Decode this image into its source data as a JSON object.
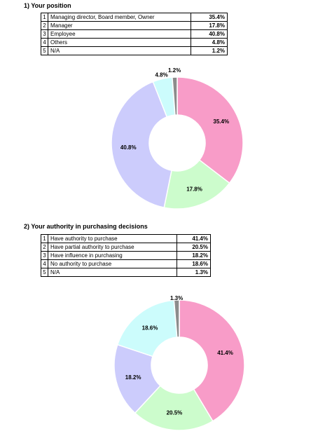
{
  "chart_data": [
    {
      "type": "pie",
      "title": "1) Your position",
      "categories": [
        "Managing director, Board member, Owner",
        "Manager",
        "Employee",
        "Others",
        "N/A"
      ],
      "values": [
        35.4,
        17.8,
        40.8,
        4.8,
        1.2
      ],
      "labels": [
        "35.4%",
        "17.8%",
        "40.8%",
        "4.8%",
        "1.2%"
      ],
      "colors": [
        "#f89cc8",
        "#ccfccc",
        "#ccccfc",
        "#ccfcfc",
        "#8c8c8c"
      ],
      "table": {
        "rows": [
          {
            "num": "1",
            "label": "Managing director, Board member, Owner",
            "pct": "35.4%"
          },
          {
            "num": "2",
            "label": "Manager",
            "pct": "17.8%"
          },
          {
            "num": "3",
            "label": "Employee",
            "pct": "40.8%"
          },
          {
            "num": "4",
            "label": "Others",
            "pct": "4.8%"
          },
          {
            "num": "5",
            "label": "N/A",
            "pct": "1.2%"
          }
        ]
      }
    },
    {
      "type": "pie",
      "title": "2) Your authority in purchasing decisions",
      "categories": [
        "Have authority to purchase",
        "Have partial authority to purchase",
        "Have influence in purchasing",
        "No authority to purchase",
        "N/A"
      ],
      "values": [
        41.4,
        20.5,
        18.2,
        18.6,
        1.3
      ],
      "labels": [
        "41.4%",
        "20.5%",
        "18.2%",
        "18.6%",
        "1.3%"
      ],
      "colors": [
        "#f89cc8",
        "#ccfccc",
        "#ccccfc",
        "#ccfcfc",
        "#8c8c8c"
      ],
      "table": {
        "rows": [
          {
            "num": "1",
            "label": "Have authority to purchase",
            "pct": "41.4%"
          },
          {
            "num": "2",
            "label": "Have partial authority to purchase",
            "pct": "20.5%"
          },
          {
            "num": "3",
            "label": "Have influence in purchasing",
            "pct": "18.2%"
          },
          {
            "num": "4",
            "label": "No authority to purchase",
            "pct": "18.6%"
          },
          {
            "num": "5",
            "label": "N/A",
            "pct": "1.3%"
          }
        ]
      }
    }
  ]
}
